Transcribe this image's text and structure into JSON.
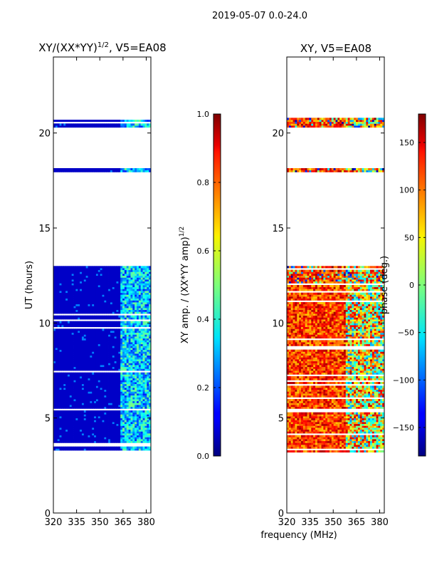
{
  "figure_title": "2019-05-07 0.0-24.0",
  "shared_xlabel": "frequency (MHz)",
  "chart_data": [
    {
      "type": "heatmap",
      "title": "XY/(XX*YY)^1/2, V5=EA08",
      "title_main": "XY/(XX*YY)",
      "title_sup": "1/2",
      "title_rest": ", V5=EA08",
      "xlabel": "frequency (MHz)",
      "ylabel": "UT (hours)",
      "xlim": [
        320,
        383
      ],
      "ylim": [
        0,
        24
      ],
      "xticks": [
        320,
        335,
        350,
        365,
        380
      ],
      "yticks": [
        0,
        5,
        10,
        15,
        20
      ],
      "colormap": "jet",
      "color_range": [
        0.0,
        1.0
      ],
      "data_time_ranges": [
        [
          3.2,
          13.0
        ],
        [
          17.95,
          18.1
        ],
        [
          20.3,
          20.7
        ]
      ],
      "cbar_label": "XY amp. / (XX*YY amp)^1/2",
      "cbar_label_main": "XY amp. / (XX*YY amp)",
      "cbar_label_sup": "1/2",
      "cbar_ticks": [
        "0.0",
        "0.2",
        "0.4",
        "0.6",
        "0.8",
        "1.0"
      ],
      "cbar_tick_values": [
        0.0,
        0.2,
        0.4,
        0.6,
        0.8,
        1.0
      ]
    },
    {
      "type": "heatmap",
      "title": "XY, V5=EA08",
      "xlabel": "frequency (MHz)",
      "ylabel": "",
      "xlim": [
        320,
        383
      ],
      "ylim": [
        0,
        24
      ],
      "xticks": [
        320,
        335,
        350,
        365,
        380
      ],
      "yticks": [
        0,
        5,
        10,
        15,
        20
      ],
      "colormap": "jet",
      "color_range": [
        -180,
        180
      ],
      "data_time_ranges": [
        [
          3.2,
          13.0
        ],
        [
          17.95,
          18.1
        ],
        [
          20.3,
          20.8
        ]
      ],
      "cbar_label": "phase (deg.)",
      "cbar_ticks": [
        "−150",
        "−100",
        "−50",
        "0",
        "50",
        "100",
        "150"
      ],
      "cbar_tick_values": [
        -150,
        -100,
        -50,
        0,
        50,
        100,
        150
      ]
    }
  ]
}
